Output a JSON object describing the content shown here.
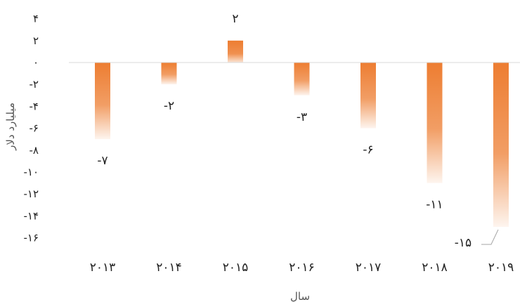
{
  "chart_data": {
    "type": "bar",
    "title": "",
    "xlabel": "سال",
    "ylabel": "میلیارد دلار",
    "categories": [
      "۲۰۱۳",
      "۲۰۱۴",
      "۲۰۱۵",
      "۲۰۱۶",
      "۲۰۱۷",
      "۲۰۱۸",
      "۲۰۱۹"
    ],
    "values": [
      -7,
      -2,
      2,
      -3,
      -6,
      -11,
      -15
    ],
    "data_labels": [
      "-۷",
      "-۲",
      "۲",
      "-۳",
      "-۶",
      "-۱۱",
      "-۱۵"
    ],
    "yticks": [
      4,
      2,
      0,
      -2,
      -4,
      -6,
      -8,
      -10,
      -12,
      -14,
      -16
    ],
    "ytick_labels": [
      "۴",
      "۲",
      "۰",
      "-۲",
      "-۴",
      "-۶",
      "-۸",
      "-۱۰",
      "-۱۲",
      "-۱۴",
      "-۱۶"
    ],
    "ylim": [
      -16,
      4
    ],
    "grid": false,
    "legend": "none",
    "colors": {
      "bar": "#ED7D31",
      "axis": "#D9D9D9",
      "leader": "#A6A6A6"
    }
  }
}
